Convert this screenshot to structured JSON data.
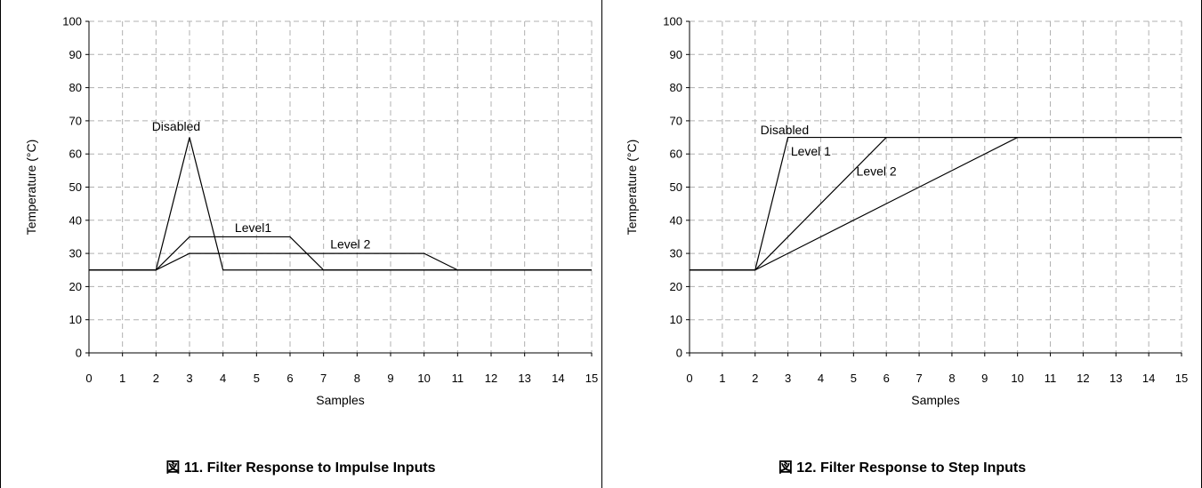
{
  "chart_data": [
    {
      "type": "line",
      "caption": "図 11. Filter Response to Impulse Inputs",
      "xlabel": "Samples",
      "ylabel": "Temperature (°C)",
      "xlim": [
        0,
        15
      ],
      "ylim": [
        0,
        100
      ],
      "xticks": [
        0,
        1,
        2,
        3,
        4,
        5,
        6,
        7,
        8,
        9,
        10,
        11,
        12,
        13,
        14,
        15
      ],
      "yticks": [
        0,
        10,
        20,
        30,
        40,
        50,
        60,
        70,
        80,
        90,
        100
      ],
      "grid": true,
      "series": [
        {
          "name": "Disabled",
          "x": [
            0,
            2,
            3,
            4,
            15
          ],
          "y": [
            25,
            25,
            65,
            25,
            25
          ]
        },
        {
          "name": "Level1",
          "x": [
            0,
            2,
            3,
            6,
            7,
            15
          ],
          "y": [
            25,
            25,
            35,
            35,
            25,
            25
          ]
        },
        {
          "name": "Level 2",
          "x": [
            0,
            2,
            3,
            10,
            11,
            15
          ],
          "y": [
            25,
            25,
            30,
            30,
            25,
            25
          ]
        }
      ],
      "annotations": [
        {
          "text": "Disabled",
          "x": 2.6,
          "y": 67
        },
        {
          "text": "Level1",
          "x": 4.9,
          "y": 36.5
        },
        {
          "text": "Level 2",
          "x": 7.8,
          "y": 31.5
        }
      ]
    },
    {
      "type": "line",
      "caption": "図 12. Filter Response to Step Inputs",
      "xlabel": "Samples",
      "ylabel": "Temperature (°C)",
      "xlim": [
        0,
        15
      ],
      "ylim": [
        0,
        100
      ],
      "xticks": [
        0,
        1,
        2,
        3,
        4,
        5,
        6,
        7,
        8,
        9,
        10,
        11,
        12,
        13,
        14,
        15
      ],
      "yticks": [
        0,
        10,
        20,
        30,
        40,
        50,
        60,
        70,
        80,
        90,
        100
      ],
      "grid": true,
      "series": [
        {
          "name": "Disabled",
          "x": [
            0,
            2,
            3,
            15
          ],
          "y": [
            25,
            25,
            65,
            65
          ]
        },
        {
          "name": "Level 1",
          "x": [
            0,
            2,
            6,
            15
          ],
          "y": [
            25,
            25,
            65,
            65
          ]
        },
        {
          "name": "Level 2",
          "x": [
            0,
            2,
            10,
            15
          ],
          "y": [
            25,
            25,
            65,
            65
          ]
        }
      ],
      "annotations": [
        {
          "text": "Disabled",
          "x": 2.9,
          "y": 66
        },
        {
          "text": "Level 1",
          "x": 3.7,
          "y": 59.5
        },
        {
          "text": "Level 2",
          "x": 5.7,
          "y": 53.5
        }
      ]
    }
  ]
}
